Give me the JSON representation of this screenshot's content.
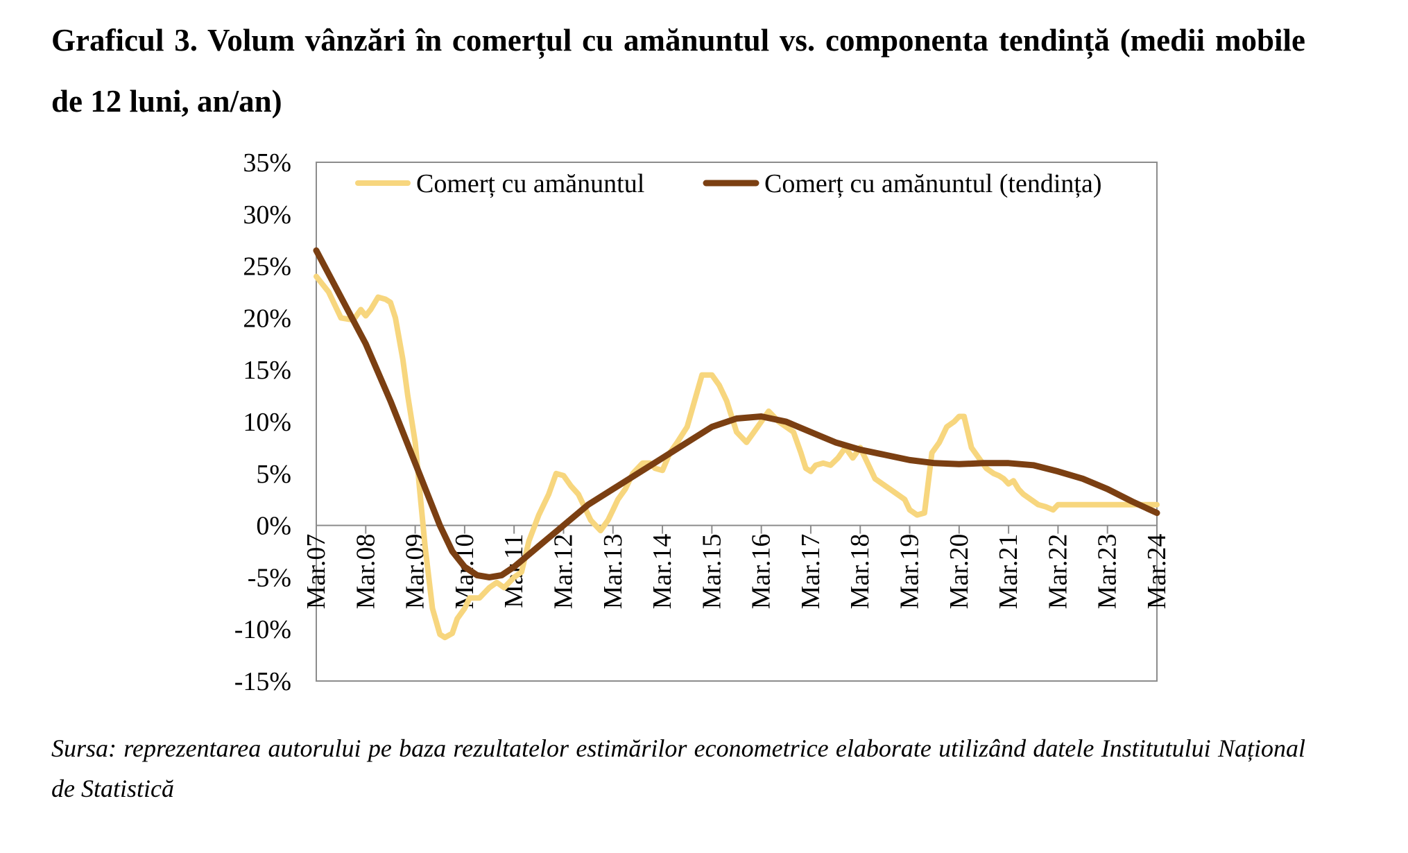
{
  "title": "Graficul 3. Volum vânzări în comerțul cu amănuntul vs. componenta tendință (medii mobile de 12 luni, an/an)",
  "source": "Sursa: reprezentarea autorului pe baza rezultatelor estimărilor econometrice elaborate utilizând datele Institutului Național de Statistică",
  "chart_data": {
    "type": "line",
    "title": "",
    "xlabel": "",
    "ylabel": "",
    "ylim": [
      -15,
      35
    ],
    "y_ticks": [
      35,
      30,
      25,
      20,
      15,
      10,
      5,
      0,
      -5,
      -10,
      -15
    ],
    "y_tick_labels": [
      "35%",
      "30%",
      "25%",
      "20%",
      "15%",
      "10%",
      "5%",
      "0%",
      "-5%",
      "-10%",
      "-15%"
    ],
    "x_tick_labels": [
      "Mar.07",
      "Mar.08",
      "Mar.09",
      "Mar.10",
      "Mar.11",
      "Mar.12",
      "Mar.13",
      "Mar.14",
      "Mar.15",
      "Mar.16",
      "Mar.17",
      "Mar.18",
      "Mar.19",
      "Mar.20",
      "Mar.21",
      "Mar.22",
      "Mar.23",
      "Mar.24"
    ],
    "x_ticks_years": [
      2007,
      2008,
      2009,
      2010,
      2011,
      2012,
      2013,
      2014,
      2015,
      2016,
      2017,
      2018,
      2019,
      2020,
      2021,
      2022,
      2023,
      2024
    ],
    "x_range_years": [
      2007,
      2024
    ],
    "legend_position": "top",
    "grid": false,
    "colors": {
      "series1": "#F7D67E",
      "series2": "#7B3F12",
      "axis": "#8C8C8C",
      "text": "#000000"
    },
    "series": [
      {
        "name": "Comerț cu amănuntul",
        "color": "#F7D67E",
        "x": [
          2007.0,
          2007.25,
          2007.5,
          2007.75,
          2007.9,
          2008.0,
          2008.1,
          2008.25,
          2008.4,
          2008.5,
          2008.6,
          2008.75,
          2008.85,
          2009.0,
          2009.1,
          2009.2,
          2009.35,
          2009.5,
          2009.6,
          2009.75,
          2009.85,
          2010.0,
          2010.1,
          2010.2,
          2010.3,
          2010.5,
          2010.65,
          2010.8,
          2011.0,
          2011.15,
          2011.3,
          2011.5,
          2011.7,
          2011.85,
          2012.0,
          2012.15,
          2012.3,
          2012.45,
          2012.55,
          2012.65,
          2012.75,
          2012.9,
          2013.0,
          2013.1,
          2013.25,
          2013.4,
          2013.5,
          2013.6,
          2013.75,
          2013.85,
          2014.0,
          2014.15,
          2014.3,
          2014.5,
          2014.65,
          2014.8,
          2015.0,
          2015.15,
          2015.3,
          2015.5,
          2015.7,
          2015.85,
          2016.0,
          2016.15,
          2016.25,
          2016.35,
          2016.5,
          2016.65,
          2016.8,
          2016.9,
          2017.0,
          2017.1,
          2017.25,
          2017.4,
          2017.55,
          2017.7,
          2017.85,
          2018.0,
          2018.15,
          2018.3,
          2018.45,
          2018.6,
          2018.75,
          2018.9,
          2019.0,
          2019.15,
          2019.3,
          2019.45,
          2019.6,
          2019.75,
          2019.9,
          2020.0,
          2020.1,
          2020.25,
          2020.4,
          2020.55,
          2020.7,
          2020.8,
          2020.9,
          2021.0,
          2021.1,
          2021.2,
          2021.3,
          2021.45,
          2021.6,
          2021.75,
          2021.9,
          2022.0,
          2022.1,
          2022.2,
          2022.35,
          2022.5,
          2022.7,
          2022.85,
          2023.0,
          2023.2,
          2023.4,
          2023.55,
          2023.7,
          2023.85,
          2024.0
        ],
        "values": [
          24.0,
          22.5,
          20.0,
          19.8,
          20.8,
          20.2,
          20.8,
          22.0,
          21.8,
          21.5,
          20.0,
          16.0,
          12.5,
          8.0,
          3.0,
          -2.0,
          -8.0,
          -10.5,
          -10.8,
          -10.4,
          -9.0,
          -8.0,
          -7.0,
          -7.0,
          -7.0,
          -6.0,
          -5.5,
          -6.0,
          -5.0,
          -4.5,
          -1.5,
          1.0,
          3.0,
          5.0,
          4.8,
          3.8,
          3.0,
          1.5,
          0.5,
          0.0,
          -0.5,
          0.5,
          1.5,
          2.5,
          3.5,
          5.0,
          5.5,
          6.0,
          6.0,
          5.5,
          5.3,
          7.0,
          8.0,
          9.5,
          12.0,
          14.5,
          14.5,
          13.5,
          12.0,
          9.0,
          8.0,
          9.0,
          10.0,
          11.0,
          10.5,
          10.0,
          9.5,
          9.0,
          7.0,
          5.5,
          5.2,
          5.8,
          6.0,
          5.8,
          6.5,
          7.5,
          6.5,
          7.5,
          6.0,
          4.5,
          4.0,
          3.5,
          3.0,
          2.5,
          1.5,
          1.0,
          1.2,
          7.0,
          8.0,
          9.5,
          10.0,
          10.5,
          10.5,
          7.5,
          6.5,
          5.5,
          5.0,
          4.8,
          4.5,
          4.0,
          4.3,
          3.5,
          3.0,
          2.5,
          2.0,
          1.8,
          1.5,
          2.0,
          2.0,
          2.0,
          2.0,
          2.0,
          2.0,
          2.0,
          2.0,
          2.0,
          2.0,
          2.0,
          2.0,
          2.0,
          2.0
        ]
      },
      {
        "name": "Comerț cu amănuntul (tendința)",
        "color": "#7B3F12",
        "x": [
          2007.0,
          2007.5,
          2008.0,
          2008.5,
          2009.0,
          2009.25,
          2009.5,
          2009.75,
          2010.0,
          2010.25,
          2010.5,
          2010.75,
          2011.0,
          2011.25,
          2011.5,
          2011.75,
          2012.0,
          2012.5,
          2013.0,
          2013.5,
          2014.0,
          2014.5,
          2015.0,
          2015.5,
          2016.0,
          2016.5,
          2017.0,
          2017.5,
          2018.0,
          2018.5,
          2019.0,
          2019.5,
          2020.0,
          2020.5,
          2021.0,
          2021.5,
          2022.0,
          2022.5,
          2023.0,
          2023.5,
          2024.0
        ],
        "values": [
          26.5,
          22.0,
          17.5,
          12.0,
          6.0,
          3.0,
          0.0,
          -2.5,
          -4.0,
          -4.8,
          -5.0,
          -4.8,
          -4.0,
          -3.0,
          -2.0,
          -1.0,
          0.0,
          2.0,
          3.5,
          5.0,
          6.5,
          8.0,
          9.5,
          10.3,
          10.5,
          10.0,
          9.0,
          8.0,
          7.3,
          6.8,
          6.3,
          6.0,
          5.9,
          6.0,
          6.0,
          5.8,
          5.2,
          4.5,
          3.5,
          2.3,
          1.2
        ]
      }
    ]
  }
}
